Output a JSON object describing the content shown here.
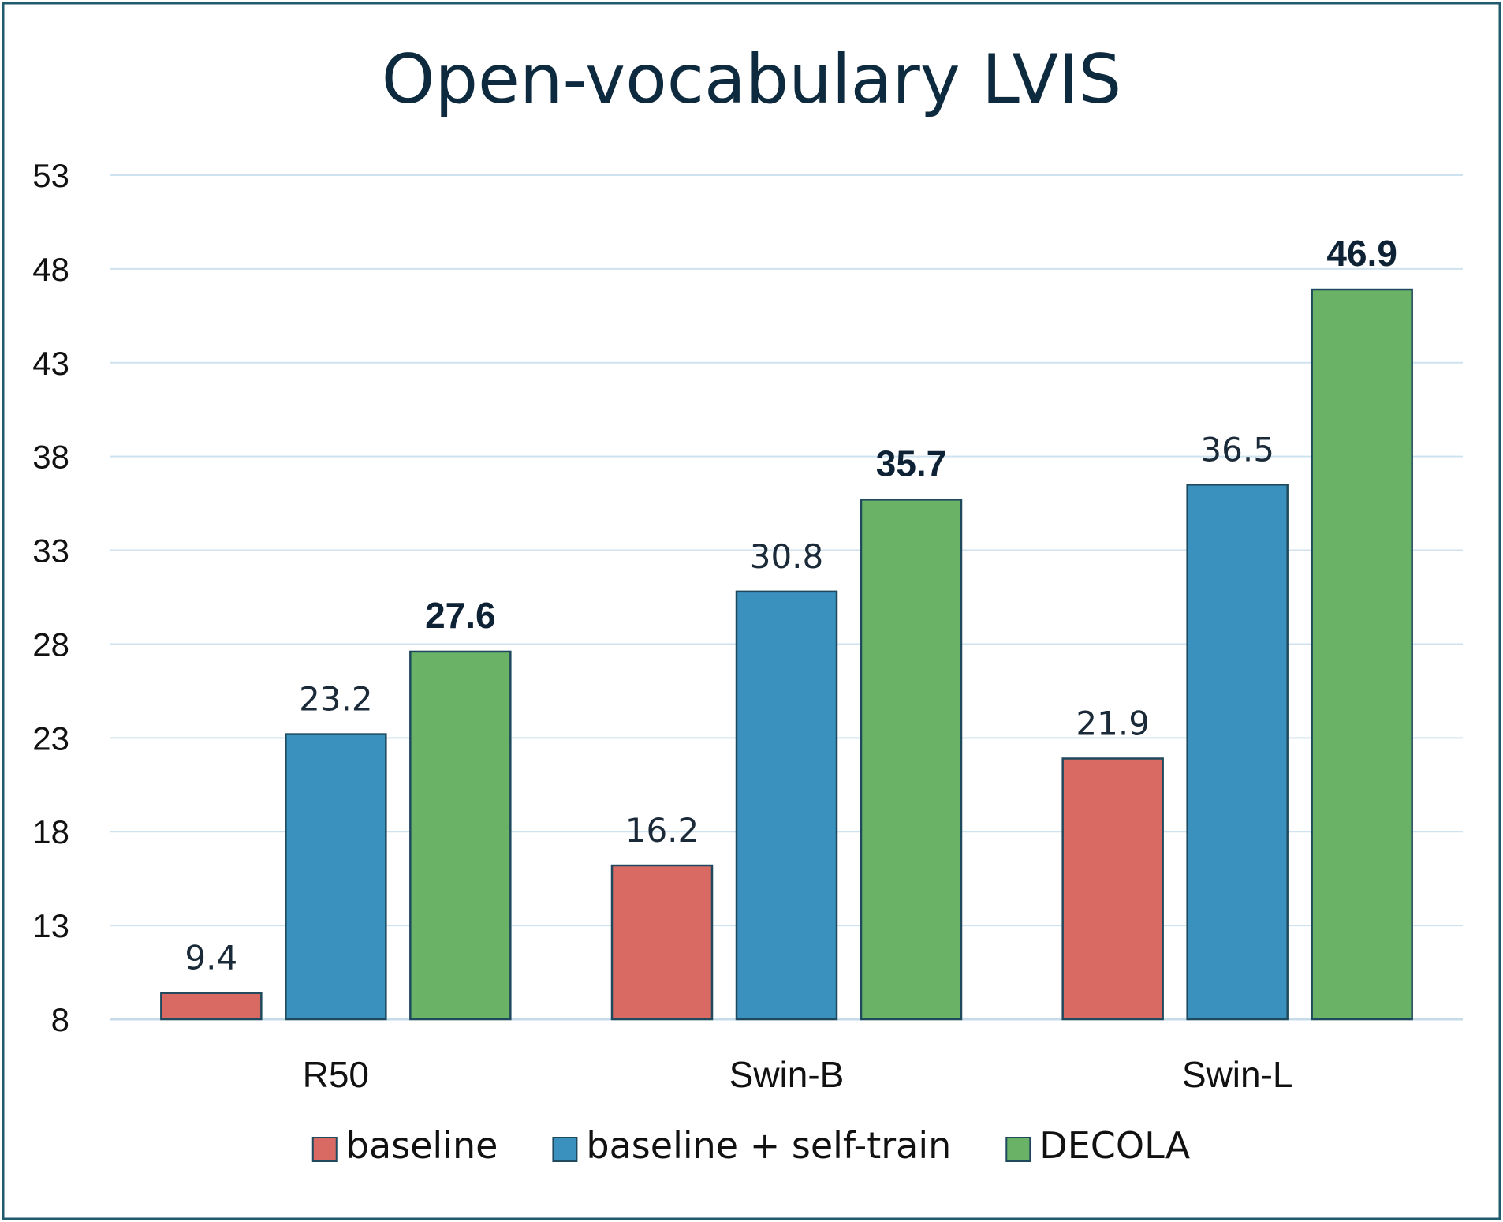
{
  "chart_data": {
    "type": "bar",
    "title": "Open-vocabulary LVIS",
    "xlabel": "",
    "ylabel": "",
    "categories": [
      "R50",
      "Swin-B",
      "Swin-L"
    ],
    "y_ticks": [
      "53",
      "48",
      "43",
      "38",
      "33",
      "28",
      "23",
      "18",
      "13",
      "8"
    ],
    "ylim": [
      8,
      53
    ],
    "grid": true,
    "legend_position": "bottom",
    "series": [
      {
        "name": "baseline",
        "values": [
          9.4,
          16.2,
          21.9
        ],
        "labels": [
          "9.4",
          "16.2",
          "21.9"
        ],
        "color": "#d96a63",
        "bold_labels": false
      },
      {
        "name": "baseline + self-train",
        "values": [
          23.2,
          30.8,
          36.5
        ],
        "labels": [
          "23.2",
          "30.8",
          "36.5"
        ],
        "color": "#3a91bd",
        "bold_labels": false
      },
      {
        "name": "DECOLA",
        "values": [
          27.6,
          35.7,
          46.9
        ],
        "labels": [
          "27.6",
          "35.7",
          "46.9"
        ],
        "color": "#6ab366",
        "bold_labels": true
      }
    ],
    "colors": {
      "border": "#1f5a6e",
      "grid": "#cfe2ef",
      "axis": "#c5dbe9",
      "bar_outline": "#1f4a5e"
    }
  }
}
